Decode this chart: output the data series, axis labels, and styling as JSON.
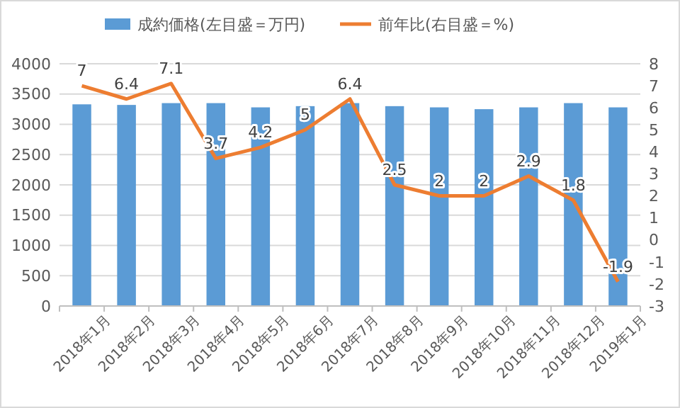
{
  "chart_data": {
    "type": "bar",
    "categories": [
      "2018年1月",
      "2018年2月",
      "2018年3月",
      "2018年4月",
      "2018年5月",
      "2018年6月",
      "2018年7月",
      "2018年8月",
      "2018年9月",
      "2018年10月",
      "2018年11月",
      "2018年12月",
      "2019年1月"
    ],
    "series": [
      {
        "name": "成約価格(左目盛＝万円)",
        "color": "#5b9bd5",
        "values": [
          3330,
          3320,
          3350,
          3350,
          3280,
          3300,
          3350,
          3300,
          3280,
          3250,
          3280,
          3350,
          3280
        ]
      },
      {
        "name": "前年比(右目盛＝%)",
        "type": "line",
        "axis": "y2",
        "color": "#ed7d31",
        "values": [
          7,
          6.4,
          7.1,
          3.7,
          4.2,
          5,
          6.4,
          2.5,
          2,
          2,
          2.9,
          1.8,
          -1.9
        ],
        "data_labels": true
      }
    ],
    "ylim": [
      0,
      4000
    ],
    "yticks": [
      0,
      500,
      1000,
      1500,
      2000,
      2500,
      3000,
      3500,
      4000
    ],
    "y2lim": [
      -3,
      8
    ],
    "y2ticks": [
      -3,
      -2,
      -1,
      0,
      1,
      2,
      3,
      4,
      5,
      6,
      7,
      8
    ],
    "grid": "y",
    "legend": "top",
    "marker": "none",
    "line_style": "solid"
  }
}
